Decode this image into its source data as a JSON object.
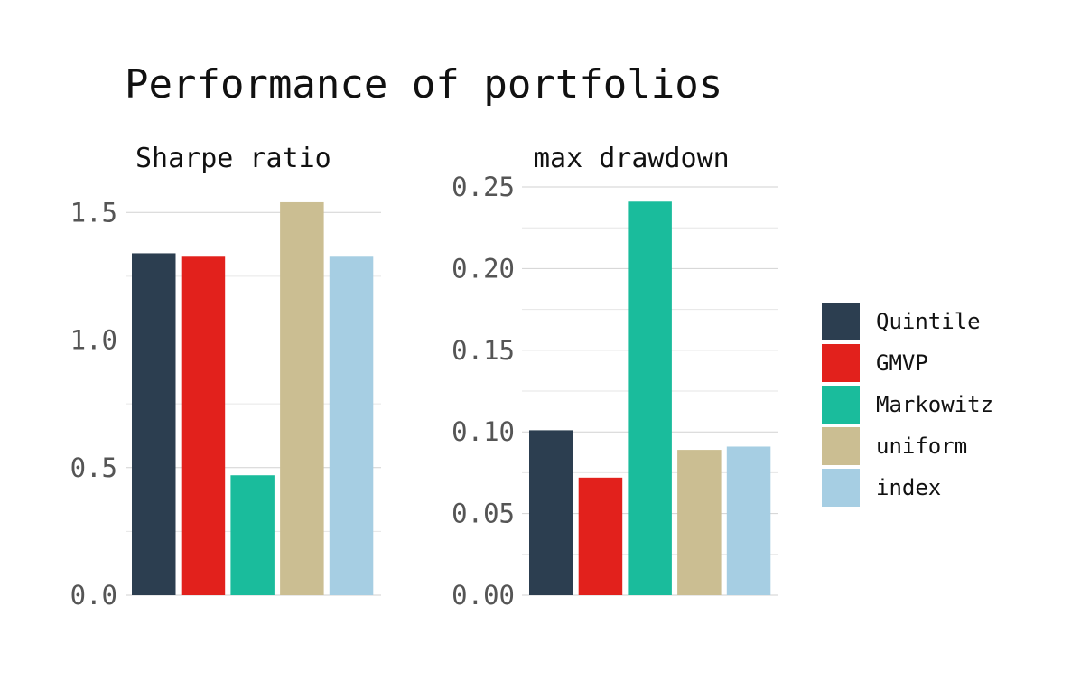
{
  "title": "Performance of portfolios",
  "legend": {
    "position": "right",
    "items": [
      {
        "label": "Quintile",
        "color": "#2c3e50"
      },
      {
        "label": "GMVP",
        "color": "#e2211c"
      },
      {
        "label": "Markowitz",
        "color": "#1abc9c"
      },
      {
        "label": "uniform",
        "color": "#cbbe92"
      },
      {
        "label": "index",
        "color": "#a6cee3"
      }
    ]
  },
  "chart_data": [
    {
      "type": "bar",
      "title": "Sharpe ratio",
      "categories": [
        "Quintile",
        "GMVP",
        "Markowitz",
        "uniform",
        "index"
      ],
      "values": [
        1.34,
        1.33,
        0.47,
        1.54,
        1.33
      ],
      "ylim": [
        0,
        1.6
      ],
      "yticks": [
        0.0,
        0.5,
        1.0,
        1.5
      ],
      "ytick_labels": [
        "0.0",
        "0.5",
        "1.0",
        "1.5"
      ],
      "grid": true
    },
    {
      "type": "bar",
      "title": "max drawdown",
      "categories": [
        "Quintile",
        "GMVP",
        "Markowitz",
        "uniform",
        "index"
      ],
      "values": [
        0.101,
        0.072,
        0.241,
        0.089,
        0.091
      ],
      "ylim": [
        0,
        0.25
      ],
      "yticks": [
        0.0,
        0.05,
        0.1,
        0.15,
        0.2,
        0.25
      ],
      "ytick_labels": [
        "0.00",
        "0.05",
        "0.10",
        "0.15",
        "0.20",
        "0.25"
      ],
      "grid": true
    }
  ]
}
